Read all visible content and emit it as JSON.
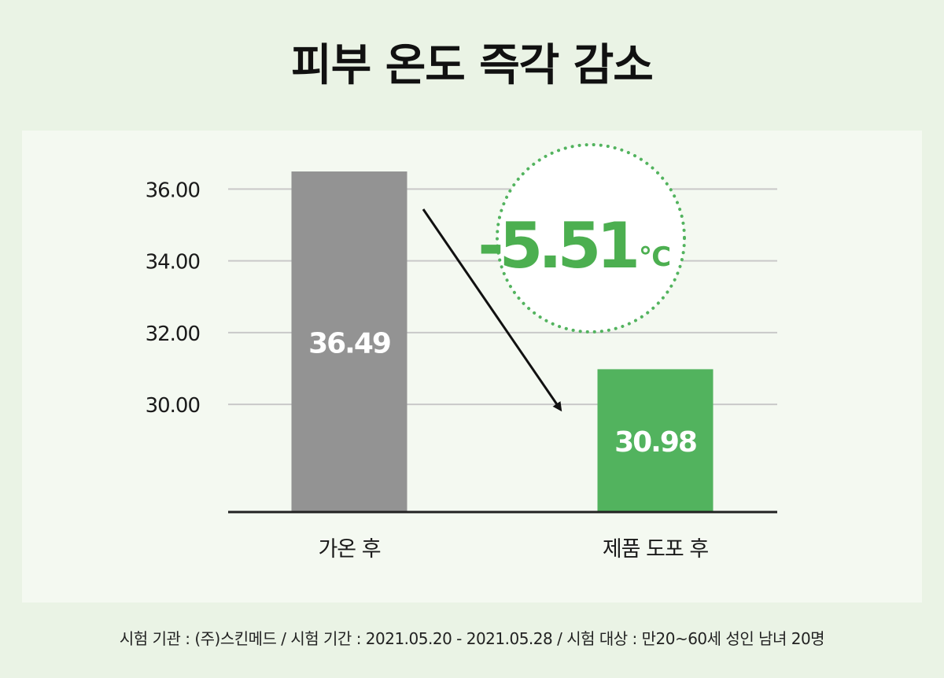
{
  "title": "피부 온도 즉각 감소",
  "chart_data": {
    "type": "bar",
    "categories": [
      "가온 후",
      "제품 도포 후"
    ],
    "values": [
      36.49,
      30.98
    ],
    "value_labels": [
      "36.49",
      "30.98"
    ],
    "colors": [
      "#939393",
      "#52b35e"
    ],
    "y_ticks": [
      30.0,
      32.0,
      34.0,
      36.0
    ],
    "y_tick_labels": [
      "30.00",
      "32.00",
      "34.00",
      "36.00"
    ],
    "ylim": [
      27.0,
      36.6
    ],
    "grid": true,
    "annotation": {
      "value": "-5.51",
      "unit": "℃",
      "color": "#4caf50"
    }
  },
  "footer": "시험 기관 : (주)스킨메드 / 시험 기간 : 2021.05.20 - 2021.05.28 / 시험 대상 : 만20~60세 성인 남녀 20명"
}
